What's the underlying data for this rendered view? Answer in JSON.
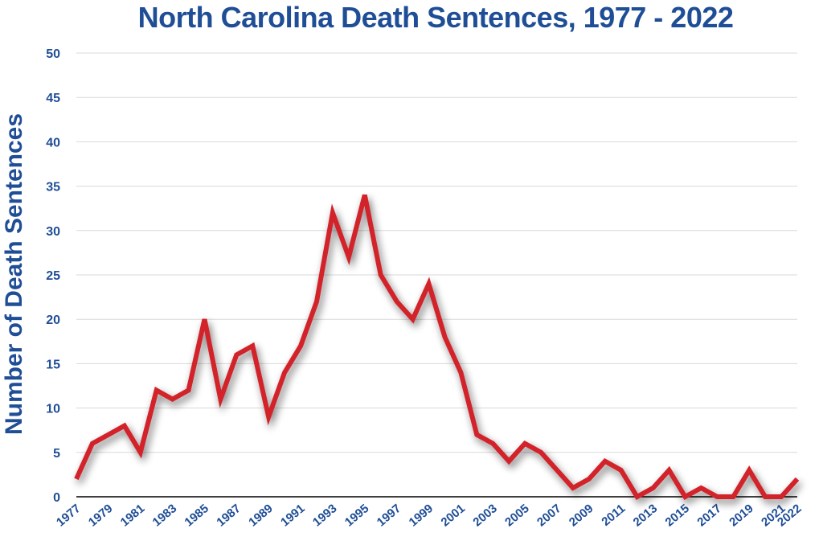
{
  "chart_data": {
    "type": "line",
    "title": "North Carolina Death Sentences, 1977 - 2022",
    "xlabel": "",
    "ylabel": "Number of Death Sentences",
    "ylim": [
      0,
      50
    ],
    "yticks": [
      "0",
      "5",
      "10",
      "15",
      "20",
      "25",
      "30",
      "35",
      "40",
      "45",
      "50"
    ],
    "xticks": [
      "1977",
      "1979",
      "1981",
      "1983",
      "1985",
      "1987",
      "1989",
      "1991",
      "1993",
      "1995",
      "1997",
      "1999",
      "2001",
      "2003",
      "2005",
      "2007",
      "2009",
      "2011",
      "2013",
      "2015",
      "2017",
      "2019",
      "2021",
      "2022"
    ],
    "grid": true,
    "line_color": "#d2232a",
    "x": [
      1977,
      1978,
      1979,
      1980,
      1981,
      1982,
      1983,
      1984,
      1985,
      1986,
      1987,
      1988,
      1989,
      1990,
      1991,
      1992,
      1993,
      1994,
      1995,
      1996,
      1997,
      1998,
      1999,
      2000,
      2001,
      2002,
      2003,
      2004,
      2005,
      2006,
      2007,
      2008,
      2009,
      2010,
      2011,
      2012,
      2013,
      2014,
      2015,
      2016,
      2017,
      2018,
      2019,
      2020,
      2021,
      2022
    ],
    "series": [
      {
        "values": [
          2,
          6,
          7,
          8,
          5,
          12,
          11,
          12,
          20,
          11,
          16,
          17,
          9,
          14,
          17,
          22,
          32,
          27,
          34,
          25,
          22,
          20,
          24,
          18,
          14,
          7,
          6,
          4,
          6,
          5,
          3,
          1,
          2,
          4,
          3,
          0,
          1,
          3,
          0,
          1,
          0,
          0,
          3,
          0,
          0,
          2
        ]
      }
    ]
  }
}
